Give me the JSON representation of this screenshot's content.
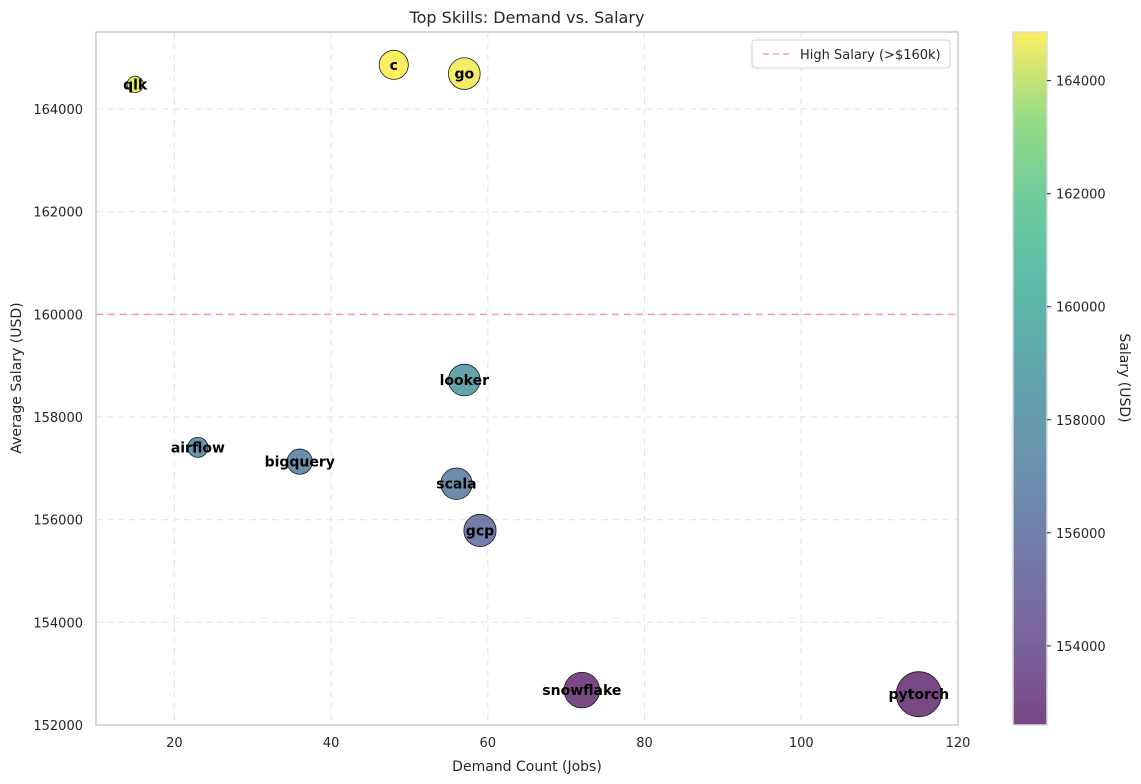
{
  "chart_data": {
    "type": "scatter",
    "title": "Top Skills: Demand vs. Salary",
    "xlabel": "Demand Count (Jobs)",
    "ylabel": "Average Salary (USD)",
    "xlim": [
      10,
      120
    ],
    "ylim": [
      152000,
      165500
    ],
    "xticks": [
      20,
      40,
      60,
      80,
      100,
      120
    ],
    "yticks": [
      152000,
      154000,
      156000,
      158000,
      160000,
      162000,
      164000
    ],
    "grid": true,
    "colormap": "viridis",
    "points": [
      {
        "skill": "qlk",
        "x": 15,
        "y": 164480
      },
      {
        "skill": "c",
        "x": 48,
        "y": 164860
      },
      {
        "skill": "go",
        "x": 57,
        "y": 164690
      },
      {
        "skill": "looker",
        "x": 57,
        "y": 158720
      },
      {
        "skill": "airflow",
        "x": 23,
        "y": 157410
      },
      {
        "skill": "bigquery",
        "x": 36,
        "y": 157130
      },
      {
        "skill": "scala",
        "x": 56,
        "y": 156700
      },
      {
        "skill": "gcp",
        "x": 59,
        "y": 155790
      },
      {
        "skill": "snowflake",
        "x": 72,
        "y": 152680
      },
      {
        "skill": "pytorch",
        "x": 115,
        "y": 152600
      }
    ],
    "reference_line": {
      "y": 160000,
      "label": "High Salary (>$160k)",
      "color": "#ff9999"
    },
    "legend_position": "top-right",
    "colorbar": {
      "label": "Salary (USD)",
      "min": 152600,
      "max": 164860,
      "ticks": [
        154000,
        156000,
        158000,
        160000,
        162000,
        164000
      ]
    }
  }
}
